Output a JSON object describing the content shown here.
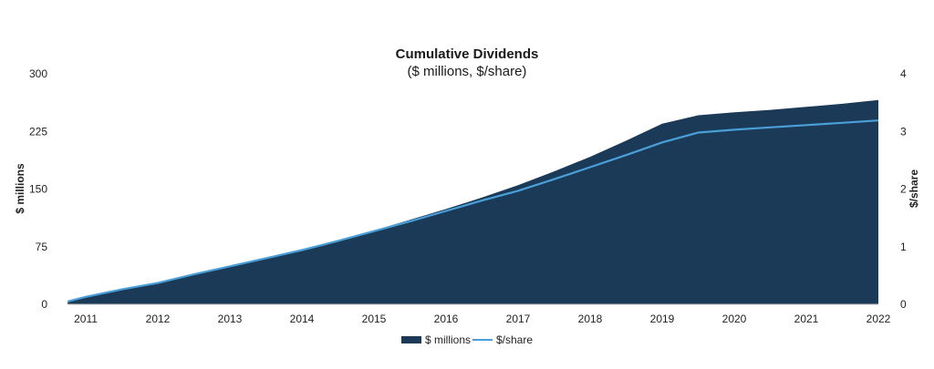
{
  "chart_data": {
    "type": "area",
    "title": "Cumulative Dividends",
    "subtitle": "($ millions, $/share)",
    "ylabel": "$ millions",
    "y2label": "$/share",
    "ylim": [
      0,
      300
    ],
    "y2lim": [
      0,
      4
    ],
    "yticks": [
      "0",
      "75",
      "150",
      "225",
      "300"
    ],
    "y2ticks": [
      "0",
      "1",
      "2",
      "3",
      "4"
    ],
    "x_tick_labels": [
      "2011",
      "2012",
      "2013",
      "2014",
      "2015",
      "2016",
      "2017",
      "2018",
      "2019",
      "2020",
      "2021",
      "2022"
    ],
    "legend": "bottom",
    "colors": {
      "area": "#1b3a57",
      "line": "#4a9fd8"
    },
    "series": [
      {
        "name": "$ millions",
        "axis": "left",
        "x": [
          2010.75,
          2011.0,
          2011.5,
          2012.0,
          2012.5,
          2013.0,
          2013.5,
          2014.0,
          2014.5,
          2015.0,
          2015.5,
          2016.0,
          2016.5,
          2017.0,
          2017.5,
          2018.0,
          2018.5,
          2019.0,
          2019.5,
          2020.0,
          2020.5,
          2021.0,
          2021.5,
          2022.0
        ],
        "values": [
          4,
          10,
          20,
          28,
          38,
          49,
          60,
          71,
          83,
          96,
          110,
          124,
          139,
          155,
          173,
          192,
          213,
          235,
          246,
          250,
          253,
          257,
          261,
          266
        ]
      },
      {
        "name": "$/share",
        "axis": "right",
        "x": [
          2010.75,
          2011.0,
          2011.5,
          2012.0,
          2012.5,
          2013.0,
          2013.5,
          2014.0,
          2014.5,
          2015.0,
          2015.5,
          2016.0,
          2016.5,
          2017.0,
          2017.5,
          2018.0,
          2018.5,
          2019.0,
          2019.5,
          2020.0,
          2020.5,
          2021.0,
          2021.5,
          2022.0
        ],
        "values": [
          0.05,
          0.13,
          0.26,
          0.37,
          0.52,
          0.66,
          0.8,
          0.94,
          1.1,
          1.27,
          1.44,
          1.62,
          1.8,
          1.97,
          2.17,
          2.38,
          2.59,
          2.81,
          2.98,
          3.03,
          3.07,
          3.11,
          3.15,
          3.19
        ]
      }
    ]
  }
}
